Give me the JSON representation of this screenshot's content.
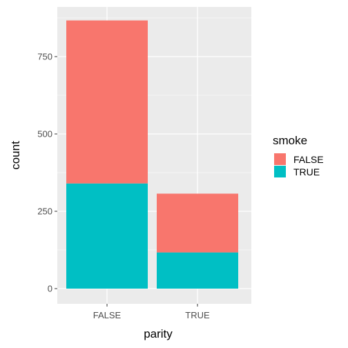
{
  "chart_data": {
    "type": "bar",
    "stacked": true,
    "title": "",
    "xlabel": "parity",
    "ylabel": "count",
    "categories": [
      "FALSE",
      "TRUE"
    ],
    "series": [
      {
        "name": "FALSE",
        "color": "#F8766D",
        "values": [
          527,
          190
        ]
      },
      {
        "name": "TRUE",
        "color": "#00BFC4",
        "values": [
          340,
          117
        ]
      }
    ],
    "ylim": [
      0,
      910
    ],
    "yticks": [
      0,
      250,
      500,
      750
    ],
    "grid": true,
    "panel_background": "#EBEBEB",
    "legend": {
      "title": "smoke",
      "placement": "right"
    }
  }
}
